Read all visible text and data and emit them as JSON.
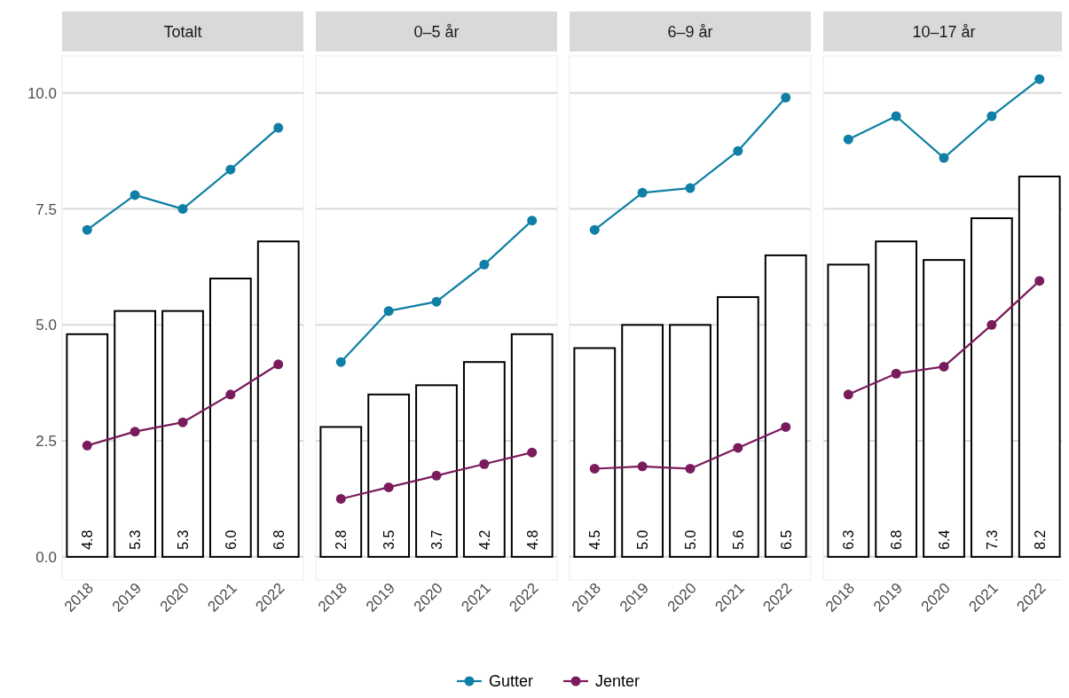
{
  "chart_data": [
    {
      "type": "bar",
      "title": "Totalt",
      "categories": [
        "2018",
        "2019",
        "2020",
        "2021",
        "2022"
      ],
      "ylim": [
        -0.5,
        10.8
      ],
      "yticks": [
        {
          "value": 0,
          "label": "0.0"
        },
        {
          "value": 2.5,
          "label": "2.5"
        },
        {
          "value": 5,
          "label": "5.0"
        },
        {
          "value": 7.5,
          "label": "7.5"
        },
        {
          "value": 10,
          "label": "10.0"
        }
      ],
      "grid": "y",
      "marker": "circle",
      "legend": "bottom",
      "series": [
        {
          "color": "#ffffff",
          "values": [
            4.8,
            5.3,
            5.3,
            6.0,
            6.8
          ],
          "value_labels": [
            "4.8",
            "5.3",
            "5.3",
            "6.0",
            "6.8"
          ]
        },
        {
          "type": "line",
          "name": "Gutter",
          "color": "#0e7fa5",
          "values": [
            7.05,
            7.8,
            7.5,
            8.35,
            9.25
          ]
        },
        {
          "type": "line",
          "name": "Jenter",
          "color": "#7a1b5c",
          "values": [
            2.4,
            2.7,
            2.9,
            3.5,
            4.15
          ]
        }
      ]
    },
    {
      "type": "bar",
      "title": "0–5 år",
      "categories": [
        "2018",
        "2019",
        "2020",
        "2021",
        "2022"
      ],
      "ylim": [
        -0.5,
        10.8
      ],
      "yticks": [
        0,
        2.5,
        5,
        7.5,
        10
      ],
      "tick_labels": "x",
      "grid": "y",
      "marker": "circle",
      "series": [
        {
          "color": "#ffffff",
          "values": [
            2.8,
            3.5,
            3.7,
            4.2,
            4.8
          ],
          "value_labels": [
            "2.8",
            "3.5",
            "3.7",
            "4.2",
            "4.8"
          ]
        },
        {
          "type": "line",
          "color": "#0e7fa5",
          "values": [
            4.2,
            5.3,
            5.5,
            6.3,
            7.25
          ]
        },
        {
          "type": "line",
          "color": "#7a1b5c",
          "values": [
            1.25,
            1.5,
            1.75,
            2.0,
            2.25
          ]
        }
      ]
    },
    {
      "type": "bar",
      "title": "6–9 år",
      "categories": [
        "2018",
        "2019",
        "2020",
        "2021",
        "2022"
      ],
      "ylim": [
        -0.5,
        10.8
      ],
      "yticks": [
        0,
        2.5,
        5,
        7.5,
        10
      ],
      "tick_labels": "x",
      "grid": "y",
      "marker": "circle",
      "series": [
        {
          "color": "#ffffff",
          "values": [
            4.5,
            5.0,
            5.0,
            5.6,
            6.5
          ],
          "value_labels": [
            "4.5",
            "5.0",
            "5.0",
            "5.6",
            "6.5"
          ]
        },
        {
          "type": "line",
          "color": "#0e7fa5",
          "values": [
            7.05,
            7.85,
            7.95,
            8.75,
            9.9
          ]
        },
        {
          "type": "line",
          "color": "#7a1b5c",
          "values": [
            1.9,
            1.95,
            1.9,
            2.35,
            2.8
          ]
        }
      ]
    },
    {
      "type": "bar",
      "title": "10–17 år",
      "categories": [
        "2018",
        "2019",
        "2020",
        "2021",
        "2022"
      ],
      "ylim": [
        -0.5,
        10.8
      ],
      "yticks": [
        0,
        2.5,
        5,
        7.5,
        10
      ],
      "tick_labels": "x",
      "grid": "y",
      "marker": "circle",
      "series": [
        {
          "color": "#ffffff",
          "values": [
            6.3,
            6.8,
            6.4,
            7.3,
            8.2
          ],
          "value_labels": [
            "6.3",
            "6.8",
            "6.4",
            "7.3",
            "8.2"
          ]
        },
        {
          "type": "line",
          "color": "#0e7fa5",
          "values": [
            9.0,
            9.5,
            8.6,
            9.5,
            10.3
          ]
        },
        {
          "type": "line",
          "color": "#7a1b5c",
          "values": [
            3.5,
            3.95,
            4.1,
            5.0,
            5.95
          ]
        }
      ]
    }
  ]
}
